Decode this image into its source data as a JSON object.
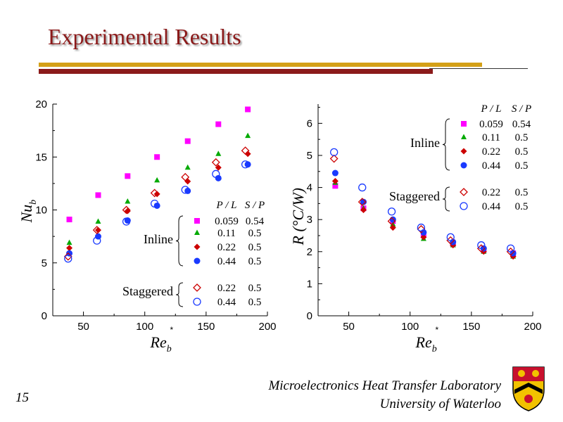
{
  "slide": {
    "title": "Experimental Results",
    "page_number": "15",
    "footer_line1": "Microelectronics Heat Transfer Laboratory",
    "footer_line2": "University of Waterloo"
  },
  "colors": {
    "title": "#8b1a1a",
    "bar_gold": "#d4a017",
    "bar_maroon": "#8b1a1a",
    "inline_0059": "#ff00ff",
    "inline_011": "#00aa00",
    "inline_022": "#cc0000",
    "inline_044": "#1a3aff",
    "staggered_022": "#cc0000",
    "staggered_044": "#1a3aff"
  },
  "chart_data": [
    {
      "type": "scatter",
      "xlabel": "Re_b",
      "xlabel_main": "Re",
      "xlabel_sub": "b",
      "xlabel_star": "*",
      "ylabel": "Nu_b",
      "ylabel_main": "Nu",
      "ylabel_sub": "b",
      "xlim": [
        25,
        200
      ],
      "ylim": [
        0,
        20
      ],
      "xticks": [
        50,
        100,
        150,
        200
      ],
      "yticks": [
        0,
        5,
        10,
        15,
        20
      ],
      "grid": false,
      "legend_position": "bottom-right",
      "legend": {
        "header_pl": "P / L",
        "header_sp": "S / P",
        "inline_label": "Inline",
        "staggered_label": "Staggered",
        "rows": [
          {
            "pl": "0.059",
            "sp": "0.54",
            "marker": "square",
            "color": "#ff00ff"
          },
          {
            "pl": "0.11",
            "sp": "0.5",
            "marker": "triangle",
            "color": "#00aa00"
          },
          {
            "pl": "0.22",
            "sp": "0.5",
            "marker": "diamond",
            "color": "#cc0000"
          },
          {
            "pl": "0.44",
            "sp": "0.5",
            "marker": "circle",
            "color": "#1a3aff"
          },
          {
            "pl": "0.22",
            "sp": "0.5",
            "marker": "diamond-open",
            "color": "#cc0000"
          },
          {
            "pl": "0.44",
            "sp": "0.5",
            "marker": "circle-open",
            "color": "#1a3aff"
          }
        ]
      },
      "series": [
        {
          "group": "Inline",
          "pl": "0.059",
          "sp": "0.54",
          "marker": "square",
          "color": "#ff00ff",
          "x": [
            38.5,
            62,
            86,
            110,
            135,
            160,
            184
          ],
          "y": [
            9.1,
            11.4,
            13.2,
            15.0,
            16.5,
            18.1,
            19.5
          ]
        },
        {
          "group": "Inline",
          "pl": "0.11",
          "sp": "0.5",
          "marker": "triangle",
          "color": "#00aa00",
          "x": [
            38.5,
            62,
            86,
            110,
            135,
            160,
            184
          ],
          "y": [
            6.9,
            8.9,
            10.8,
            12.8,
            14.0,
            15.3,
            17.0
          ]
        },
        {
          "group": "Inline",
          "pl": "0.22",
          "sp": "0.5",
          "marker": "diamond",
          "color": "#cc0000",
          "x": [
            38.5,
            62,
            86,
            110,
            135,
            160,
            184
          ],
          "y": [
            6.4,
            8.1,
            9.9,
            11.5,
            12.7,
            14.0,
            15.3
          ]
        },
        {
          "group": "Inline",
          "pl": "0.44",
          "sp": "0.5",
          "marker": "circle",
          "color": "#1a3aff",
          "x": [
            38.5,
            62,
            86,
            110,
            135,
            160,
            184
          ],
          "y": [
            5.9,
            7.5,
            9.0,
            10.4,
            11.8,
            13.0,
            14.3
          ]
        },
        {
          "group": "Staggered",
          "pl": "0.22",
          "sp": "0.5",
          "marker": "diamond-open",
          "color": "#cc0000",
          "x": [
            37.5,
            61,
            85,
            108,
            133,
            158,
            182
          ],
          "y": [
            5.6,
            8.1,
            10.0,
            11.6,
            13.1,
            14.5,
            15.6
          ]
        },
        {
          "group": "Staggered",
          "pl": "0.44",
          "sp": "0.5",
          "marker": "circle-open",
          "color": "#1a3aff",
          "x": [
            37.5,
            61,
            85,
            108,
            133,
            158,
            182
          ],
          "y": [
            5.4,
            7.1,
            8.9,
            10.6,
            11.9,
            13.4,
            14.3
          ]
        }
      ]
    },
    {
      "type": "scatter",
      "xlabel": "Re_b",
      "xlabel_main": "Re",
      "xlabel_sub": "b",
      "xlabel_star": "*",
      "ylabel": "R (°C/W)",
      "xlim": [
        25,
        200
      ],
      "ylim": [
        0,
        6.6
      ],
      "xticks": [
        50,
        100,
        150,
        200
      ],
      "yticks": [
        0,
        1,
        2,
        3,
        4,
        5,
        6
      ],
      "grid": false,
      "legend_position": "top-right",
      "legend": {
        "header_pl": "P / L",
        "header_sp": "S / P",
        "inline_label": "Inline",
        "staggered_label": "Staggered",
        "rows": [
          {
            "pl": "0.059",
            "sp": "0.54",
            "marker": "square",
            "color": "#ff00ff"
          },
          {
            "pl": "0.11",
            "sp": "0.5",
            "marker": "triangle",
            "color": "#00aa00"
          },
          {
            "pl": "0.22",
            "sp": "0.5",
            "marker": "diamond",
            "color": "#cc0000"
          },
          {
            "pl": "0.44",
            "sp": "0.5",
            "marker": "circle",
            "color": "#1a3aff"
          },
          {
            "pl": "0.22",
            "sp": "0.5",
            "marker": "diamond-open",
            "color": "#cc0000"
          },
          {
            "pl": "0.44",
            "sp": "0.5",
            "marker": "circle-open",
            "color": "#1a3aff"
          }
        ]
      },
      "series": [
        {
          "group": "Inline",
          "pl": "0.059",
          "sp": "0.54",
          "marker": "square",
          "color": "#ff00ff",
          "x": [
            39,
            62,
            86,
            111,
            135,
            160,
            184
          ],
          "y": [
            4.05,
            3.35,
            2.95,
            2.55,
            2.25,
            2.05,
            1.95
          ]
        },
        {
          "group": "Inline",
          "pl": "0.11",
          "sp": "0.5",
          "marker": "triangle",
          "color": "#00aa00",
          "x": [
            39,
            62,
            86,
            111,
            135,
            160,
            184
          ],
          "y": [
            4.15,
            3.35,
            2.85,
            2.4,
            2.2,
            2.0,
            1.85
          ]
        },
        {
          "group": "Inline",
          "pl": "0.22",
          "sp": "0.5",
          "marker": "diamond",
          "color": "#cc0000",
          "x": [
            39,
            62,
            86,
            111,
            135,
            160,
            184
          ],
          "y": [
            4.2,
            3.3,
            2.75,
            2.45,
            2.2,
            2.0,
            1.85
          ]
        },
        {
          "group": "Inline",
          "pl": "0.44",
          "sp": "0.5",
          "marker": "circle",
          "color": "#1a3aff",
          "x": [
            39,
            62,
            86,
            111,
            135,
            160,
            184
          ],
          "y": [
            4.45,
            3.55,
            3.0,
            2.6,
            2.3,
            2.1,
            1.95
          ]
        },
        {
          "group": "Staggered",
          "pl": "0.22",
          "sp": "0.5",
          "marker": "diamond-open",
          "color": "#cc0000",
          "x": [
            38,
            61,
            85,
            109,
            133,
            158,
            182
          ],
          "y": [
            4.9,
            3.55,
            2.95,
            2.7,
            2.35,
            2.1,
            2.0
          ]
        },
        {
          "group": "Staggered",
          "pl": "0.44",
          "sp": "0.5",
          "marker": "circle-open",
          "color": "#1a3aff",
          "x": [
            38,
            61,
            85,
            109,
            133,
            158,
            182
          ],
          "y": [
            5.1,
            4.0,
            3.25,
            2.75,
            2.45,
            2.2,
            2.1
          ]
        }
      ]
    }
  ]
}
